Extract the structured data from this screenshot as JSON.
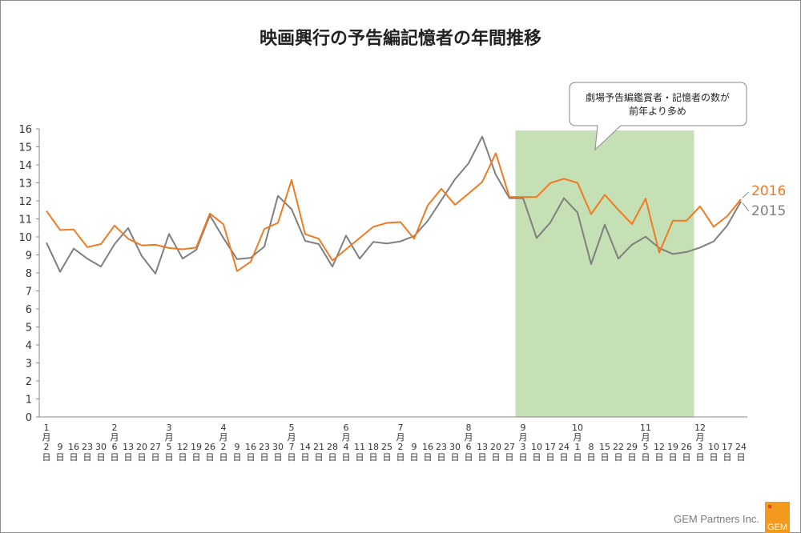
{
  "chart_data": {
    "type": "line",
    "title": "映画興行の予告編記憶者の年間推移",
    "xlabel": "",
    "ylabel": "",
    "ylim": [
      0,
      16
    ],
    "yticks": [
      0,
      1,
      2,
      3,
      4,
      5,
      6,
      7,
      8,
      9,
      10,
      11,
      12,
      13,
      14,
      15,
      16
    ],
    "grid": false,
    "x_labels": [
      {
        "month": "1",
        "day": "2"
      },
      {
        "month": "",
        "day": "9"
      },
      {
        "month": "",
        "day": "16"
      },
      {
        "month": "",
        "day": "23"
      },
      {
        "month": "",
        "day": "30"
      },
      {
        "month": "2",
        "day": "6"
      },
      {
        "month": "",
        "day": "13"
      },
      {
        "month": "",
        "day": "20"
      },
      {
        "month": "",
        "day": "27"
      },
      {
        "month": "3",
        "day": "5"
      },
      {
        "month": "",
        "day": "12"
      },
      {
        "month": "",
        "day": "19"
      },
      {
        "month": "",
        "day": "26"
      },
      {
        "month": "4",
        "day": "2"
      },
      {
        "month": "",
        "day": "9"
      },
      {
        "month": "",
        "day": "16"
      },
      {
        "month": "",
        "day": "23"
      },
      {
        "month": "",
        "day": "30"
      },
      {
        "month": "5",
        "day": "7"
      },
      {
        "month": "",
        "day": "14"
      },
      {
        "month": "",
        "day": "21"
      },
      {
        "month": "",
        "day": "28"
      },
      {
        "month": "6",
        "day": "4"
      },
      {
        "month": "",
        "day": "11"
      },
      {
        "month": "",
        "day": "18"
      },
      {
        "month": "",
        "day": "25"
      },
      {
        "month": "7",
        "day": "2"
      },
      {
        "month": "",
        "day": "9"
      },
      {
        "month": "",
        "day": "16"
      },
      {
        "month": "",
        "day": "23"
      },
      {
        "month": "",
        "day": "30"
      },
      {
        "month": "8",
        "day": "6"
      },
      {
        "month": "",
        "day": "13"
      },
      {
        "month": "",
        "day": "20"
      },
      {
        "month": "",
        "day": "27"
      },
      {
        "month": "9",
        "day": "3"
      },
      {
        "month": "",
        "day": "10"
      },
      {
        "month": "",
        "day": "17"
      },
      {
        "month": "",
        "day": "24"
      },
      {
        "month": "10",
        "day": "1"
      },
      {
        "month": "",
        "day": "8"
      },
      {
        "month": "",
        "day": "15"
      },
      {
        "month": "",
        "day": "22"
      },
      {
        "month": "",
        "day": "29"
      },
      {
        "month": "11",
        "day": "5"
      },
      {
        "month": "",
        "day": "12"
      },
      {
        "month": "",
        "day": "19"
      },
      {
        "month": "",
        "day": "26"
      },
      {
        "month": "12",
        "day": "3"
      },
      {
        "month": "",
        "day": "10"
      },
      {
        "month": "",
        "day": "17"
      },
      {
        "month": "",
        "day": "24"
      }
    ],
    "month_suffix": "月",
    "day_suffix": "日",
    "series": [
      {
        "name": "2016",
        "color": "#f07a22",
        "values": [
          11.44,
          10.38,
          10.41,
          9.43,
          9.6,
          10.63,
          9.9,
          9.53,
          9.56,
          9.38,
          9.31,
          9.41,
          11.3,
          10.7,
          8.1,
          8.62,
          10.44,
          10.78,
          13.16,
          10.15,
          9.9,
          8.69,
          9.31,
          9.94,
          10.56,
          10.78,
          10.82,
          9.9,
          11.75,
          12.67,
          11.78,
          12.41,
          13.05,
          14.64,
          12.22,
          12.22,
          12.22,
          12.99,
          13.23,
          13.0,
          11.26,
          12.34,
          11.5,
          10.71,
          12.13,
          9.13,
          10.9,
          10.9,
          11.7,
          10.56,
          11.16,
          12.09
        ]
      },
      {
        "name": "2015",
        "color": "#7f7f7f",
        "values": [
          9.68,
          8.06,
          9.35,
          8.79,
          8.35,
          9.6,
          10.49,
          8.94,
          7.96,
          10.16,
          8.79,
          9.28,
          11.19,
          9.93,
          8.76,
          8.84,
          9.46,
          12.28,
          11.54,
          9.78,
          9.6,
          8.35,
          10.07,
          8.79,
          9.72,
          9.63,
          9.75,
          10.05,
          10.89,
          12.04,
          13.2,
          14.09,
          15.57,
          13.45,
          12.15,
          12.15,
          9.94,
          10.79,
          12.15,
          11.35,
          8.49,
          10.68,
          8.79,
          9.57,
          10.01,
          9.38,
          9.05,
          9.16,
          9.41,
          9.75,
          10.64,
          11.97
        ]
      }
    ],
    "highlight": {
      "from_index": 34.5,
      "to_index": 47.5,
      "color": "#c5e0b4"
    },
    "annotation": {
      "line1": "劇場予告編鑑賞者・記憶者の数が",
      "line2": "前年より多め"
    }
  },
  "footer": {
    "company": "GEM Partners Inc.",
    "logo": "GEM"
  }
}
